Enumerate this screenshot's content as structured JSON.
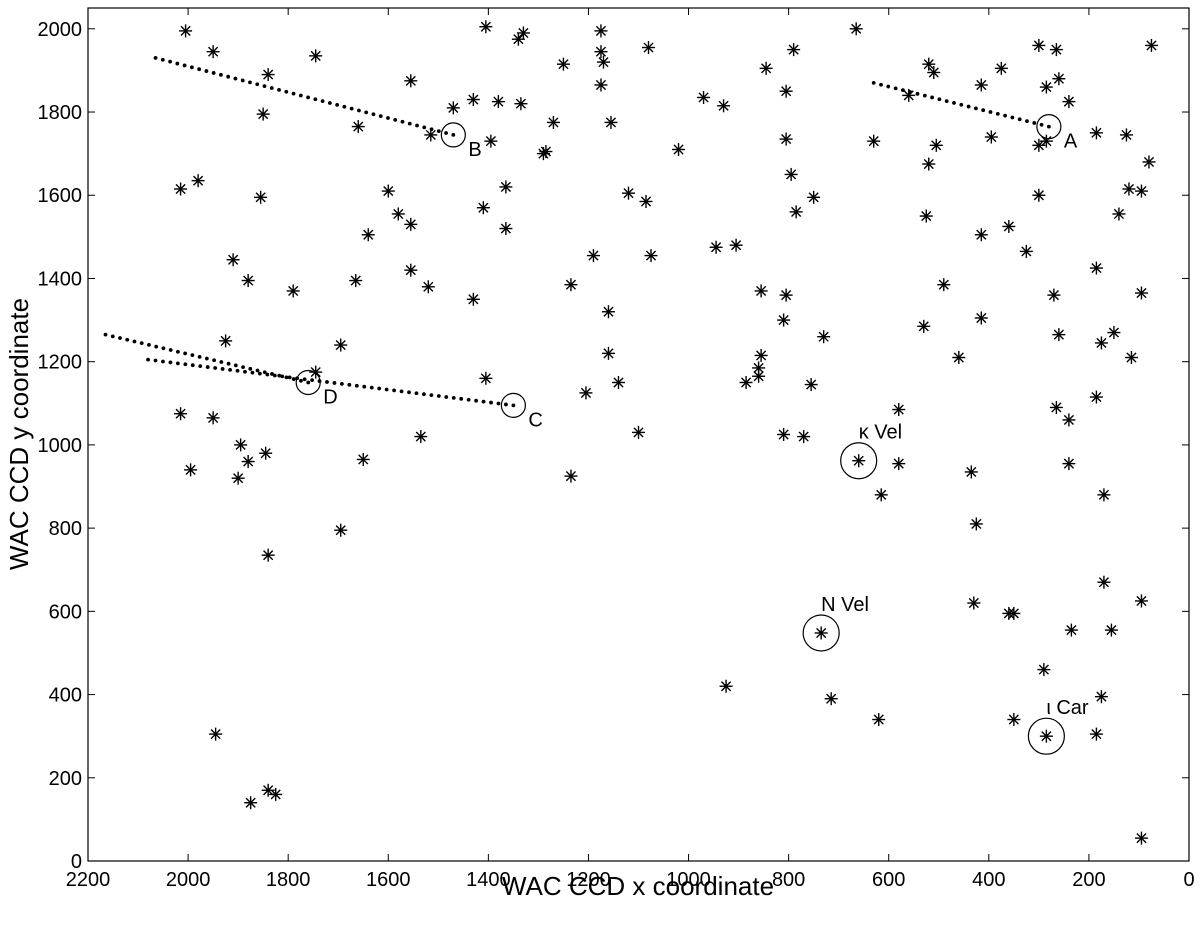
{
  "chart_data": {
    "type": "scatter",
    "title": "",
    "xlabel": "WAC CCD x coordinate",
    "ylabel": "WAC CCD y coordinate",
    "xlim": [
      2200,
      0
    ],
    "ylim": [
      0,
      2050
    ],
    "x_reversed": true,
    "grid": false,
    "xticks": [
      2200,
      2000,
      1800,
      1600,
      1400,
      1200,
      1000,
      800,
      600,
      400,
      200,
      0
    ],
    "yticks": [
      0,
      200,
      400,
      600,
      800,
      1000,
      1200,
      1400,
      1600,
      1800,
      2000
    ],
    "marker": "asterisk",
    "colors": {
      "marks": "#000000",
      "background": "#ffffff"
    },
    "stars": [
      [
        2005,
        1995
      ],
      [
        1950,
        1945
      ],
      [
        1745,
        1935
      ],
      [
        1405,
        2005
      ],
      [
        1330,
        1990
      ],
      [
        1340,
        1975
      ],
      [
        1175,
        1995
      ],
      [
        1175,
        1945
      ],
      [
        1170,
        1920
      ],
      [
        1175,
        1865
      ],
      [
        1080,
        1955
      ],
      [
        1250,
        1915
      ],
      [
        1840,
        1890
      ],
      [
        1555,
        1875
      ],
      [
        1380,
        1825
      ],
      [
        1430,
        1830
      ],
      [
        1335,
        1820
      ],
      [
        1470,
        1810
      ],
      [
        1850,
        1795
      ],
      [
        1660,
        1765
      ],
      [
        1515,
        1745
      ],
      [
        1395,
        1730
      ],
      [
        1270,
        1775
      ],
      [
        1155,
        1775
      ],
      [
        1285,
        1705
      ],
      [
        1290,
        1700
      ],
      [
        1020,
        1710
      ],
      [
        2015,
        1615
      ],
      [
        1980,
        1635
      ],
      [
        1855,
        1595
      ],
      [
        1600,
        1610
      ],
      [
        1580,
        1555
      ],
      [
        1555,
        1530
      ],
      [
        1410,
        1570
      ],
      [
        1365,
        1620
      ],
      [
        1365,
        1520
      ],
      [
        1120,
        1605
      ],
      [
        1085,
        1585
      ],
      [
        1640,
        1505
      ],
      [
        1910,
        1445
      ],
      [
        1880,
        1395
      ],
      [
        1790,
        1370
      ],
      [
        1665,
        1395
      ],
      [
        1555,
        1420
      ],
      [
        1520,
        1380
      ],
      [
        1430,
        1350
      ],
      [
        1235,
        1385
      ],
      [
        1190,
        1455
      ],
      [
        1075,
        1455
      ],
      [
        1160,
        1320
      ],
      [
        1925,
        1250
      ],
      [
        1695,
        1240
      ],
      [
        1745,
        1175
      ],
      [
        1160,
        1220
      ],
      [
        1140,
        1150
      ],
      [
        1405,
        1160
      ],
      [
        1205,
        1125
      ],
      [
        1100,
        1030
      ],
      [
        1535,
        1020
      ],
      [
        2015,
        1075
      ],
      [
        1950,
        1065
      ],
      [
        1895,
        1000
      ],
      [
        1880,
        960
      ],
      [
        1900,
        920
      ],
      [
        1845,
        980
      ],
      [
        1995,
        940
      ],
      [
        1650,
        965
      ],
      [
        1695,
        795
      ],
      [
        1840,
        735
      ],
      [
        1945,
        305
      ],
      [
        1875,
        140
      ],
      [
        1840,
        170
      ],
      [
        1825,
        160
      ],
      [
        1235,
        925
      ],
      [
        970,
        1835
      ],
      [
        930,
        1815
      ],
      [
        845,
        1905
      ],
      [
        790,
        1950
      ],
      [
        805,
        1850
      ],
      [
        805,
        1735
      ],
      [
        795,
        1650
      ],
      [
        785,
        1560
      ],
      [
        750,
        1595
      ],
      [
        945,
        1475
      ],
      [
        905,
        1480
      ],
      [
        855,
        1370
      ],
      [
        805,
        1360
      ],
      [
        810,
        1300
      ],
      [
        855,
        1215
      ],
      [
        860,
        1185
      ],
      [
        860,
        1165
      ],
      [
        885,
        1150
      ],
      [
        755,
        1145
      ],
      [
        730,
        1260
      ],
      [
        810,
        1025
      ],
      [
        770,
        1020
      ],
      [
        580,
        1085
      ],
      [
        580,
        955
      ],
      [
        615,
        880
      ],
      [
        665,
        2000
      ],
      [
        630,
        1730
      ],
      [
        560,
        1840
      ],
      [
        520,
        1915
      ],
      [
        510,
        1895
      ],
      [
        520,
        1675
      ],
      [
        505,
        1720
      ],
      [
        525,
        1550
      ],
      [
        490,
        1385
      ],
      [
        530,
        1285
      ],
      [
        460,
        1210
      ],
      [
        415,
        1865
      ],
      [
        395,
        1740
      ],
      [
        415,
        1505
      ],
      [
        415,
        1305
      ],
      [
        375,
        1905
      ],
      [
        300,
        1960
      ],
      [
        265,
        1950
      ],
      [
        285,
        1860
      ],
      [
        260,
        1880
      ],
      [
        240,
        1825
      ],
      [
        300,
        1720
      ],
      [
        285,
        1730
      ],
      [
        185,
        1750
      ],
      [
        125,
        1745
      ],
      [
        300,
        1600
      ],
      [
        120,
        1615
      ],
      [
        80,
        1680
      ],
      [
        75,
        1960
      ],
      [
        95,
        1610
      ],
      [
        140,
        1555
      ],
      [
        360,
        1525
      ],
      [
        325,
        1465
      ],
      [
        270,
        1360
      ],
      [
        260,
        1265
      ],
      [
        185,
        1425
      ],
      [
        150,
        1270
      ],
      [
        175,
        1245
      ],
      [
        115,
        1210
      ],
      [
        95,
        1365
      ],
      [
        265,
        1090
      ],
      [
        240,
        1060
      ],
      [
        185,
        1115
      ],
      [
        240,
        955
      ],
      [
        435,
        935
      ],
      [
        425,
        810
      ],
      [
        170,
        880
      ],
      [
        430,
        620
      ],
      [
        360,
        595
      ],
      [
        350,
        595
      ],
      [
        235,
        555
      ],
      [
        170,
        670
      ],
      [
        155,
        555
      ],
      [
        95,
        625
      ],
      [
        290,
        460
      ],
      [
        350,
        340
      ],
      [
        175,
        395
      ],
      [
        185,
        305
      ],
      [
        95,
        55
      ],
      [
        925,
        420
      ],
      [
        715,
        390
      ],
      [
        620,
        340
      ]
    ],
    "highlighted": [
      {
        "label": "κ Vel",
        "x": 660,
        "y": 962
      },
      {
        "label": "N Vel",
        "x": 735,
        "y": 548
      },
      {
        "label": "ι Car",
        "x": 285,
        "y": 300
      }
    ],
    "tracks": [
      {
        "label": "A",
        "from": [
          630,
          1870
        ],
        "to": [
          280,
          1765
        ]
      },
      {
        "label": "B",
        "from": [
          2065,
          1930
        ],
        "to": [
          1470,
          1745
        ]
      },
      {
        "label": "D",
        "from": [
          2165,
          1265
        ],
        "to": [
          1760,
          1150
        ]
      },
      {
        "label": "C",
        "from": [
          2080,
          1205
        ],
        "to": [
          1350,
          1095
        ]
      }
    ]
  }
}
